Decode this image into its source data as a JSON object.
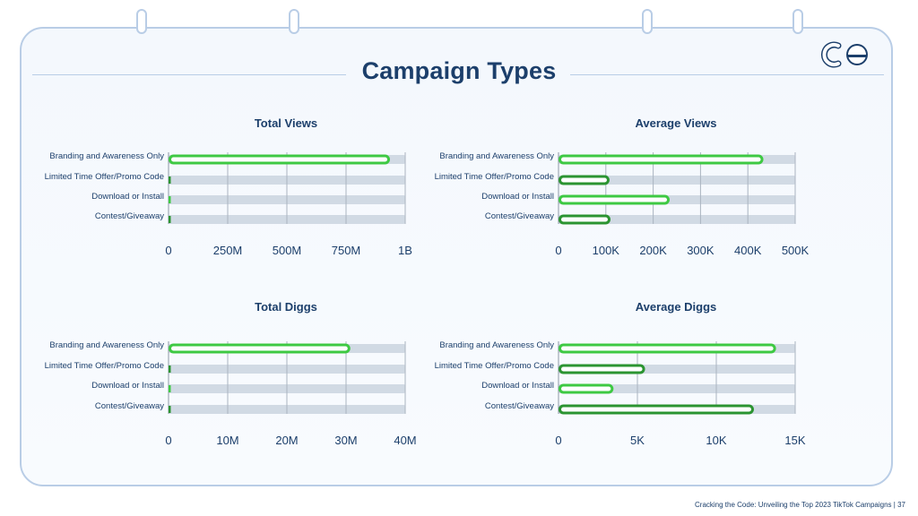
{
  "page": {
    "title": "Campaign Types",
    "footer": "Cracking the Code: Unveiling the Top 2023 TikTok Campaigns",
    "page_number": "37"
  },
  "colors": {
    "bright_green": "#3ec943",
    "dark_green": "#2b9431",
    "track": "#d1dae4",
    "text": "#1c3f6b"
  },
  "chart_data": [
    {
      "type": "bar",
      "title": "Total Views",
      "categories": [
        "Branding and Awareness Only",
        "Limited Time Offer/Promo Code",
        "Download or Install",
        "Contest/Giveaway"
      ],
      "values": [
        930000000,
        0,
        0,
        0
      ],
      "xlim": [
        0,
        1000000000
      ],
      "ticks": [
        0,
        250000000,
        500000000,
        750000000,
        1000000000
      ],
      "tick_labels": [
        "0",
        "250M",
        "500M",
        "750M",
        "1B"
      ],
      "bar_colors": [
        "#3ec943",
        "#2b9431",
        "#3ec943",
        "#2b9431"
      ]
    },
    {
      "type": "bar",
      "title": "Average Views",
      "categories": [
        "Branding and Awareness Only",
        "Limited Time Offer/Promo Code",
        "Download or Install",
        "Contest/Giveaway"
      ],
      "values": [
        430000,
        105000,
        232000,
        107000
      ],
      "xlim": [
        0,
        500000
      ],
      "ticks": [
        0,
        100000,
        200000,
        300000,
        400000,
        500000
      ],
      "tick_labels": [
        "0",
        "100K",
        "200K",
        "300K",
        "400K",
        "500K"
      ],
      "bar_colors": [
        "#3ec943",
        "#2b9431",
        "#3ec943",
        "#2b9431"
      ]
    },
    {
      "type": "bar",
      "title": "Total Diggs",
      "categories": [
        "Branding and Awareness Only",
        "Limited Time Offer/Promo Code",
        "Download or Install",
        "Contest/Giveaway"
      ],
      "values": [
        30500000,
        0,
        0,
        0
      ],
      "xlim": [
        0,
        40000000
      ],
      "ticks": [
        0,
        10000000,
        20000000,
        30000000,
        40000000
      ],
      "tick_labels": [
        "0",
        "10M",
        "20M",
        "30M",
        "40M"
      ],
      "bar_colors": [
        "#3ec943",
        "#2b9431",
        "#3ec943",
        "#2b9431"
      ]
    },
    {
      "type": "bar",
      "title": "Average Diggs",
      "categories": [
        "Branding and Awareness Only",
        "Limited Time Offer/Promo Code",
        "Download or Install",
        "Contest/Giveaway"
      ],
      "values": [
        13700,
        5400,
        3400,
        12300
      ],
      "xlim": [
        0,
        15000
      ],
      "ticks": [
        0,
        5000,
        10000,
        15000
      ],
      "tick_labels": [
        "0",
        "5K",
        "10K",
        "15K"
      ],
      "bar_colors": [
        "#3ec943",
        "#2b9431",
        "#3ec943",
        "#2b9431"
      ]
    }
  ]
}
